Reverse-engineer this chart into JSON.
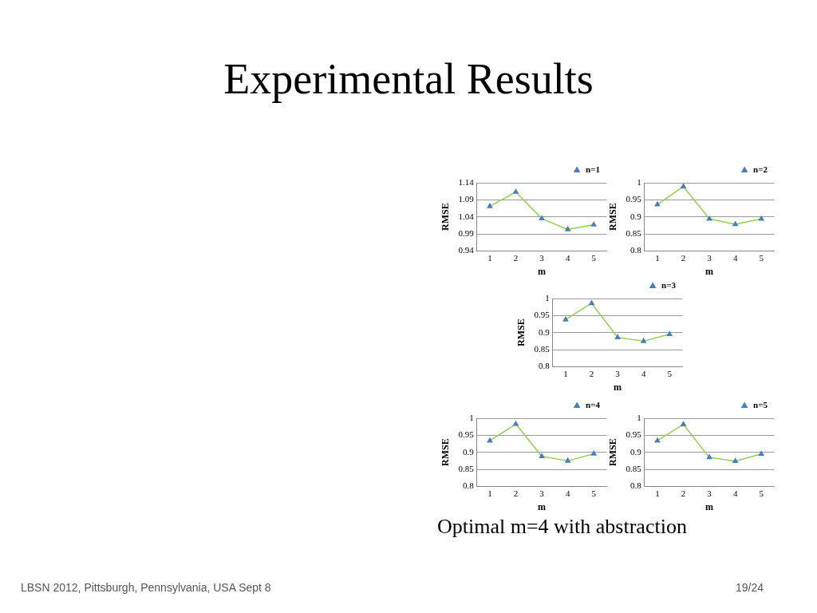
{
  "chart_data": [
    {
      "type": "line",
      "title": "Experimental Results",
      "xlabel": "m",
      "ylabel": "RMSE",
      "categories": [
        "1",
        "2",
        "3",
        "4",
        "5"
      ],
      "series": [
        {
          "name": "n=1",
          "color": "#92d050",
          "values": [
            1.071,
            1.113,
            1.035,
            1.003,
            1.017
          ]
        }
      ],
      "ylim": [
        0.94,
        1.14
      ],
      "yticks": [
        0.94,
        0.99,
        1.04,
        1.09,
        1.14
      ],
      "grid": "y",
      "legend": "top right",
      "marker": "triangle",
      "annotations": [
        "Optimal m=4 with abstraction",
        "LBSN 2012, Pittsburgh, Pennsylvania, USA  Sept 8",
        "19/24"
      ]
    },
    {
      "type": "line",
      "xlabel": "m",
      "ylabel": "RMSE",
      "categories": [
        "1",
        "2",
        "3",
        "4",
        "5"
      ],
      "series": [
        {
          "name": "n=2",
          "color": "#92d050",
          "values": [
            0.936,
            0.989,
            0.894,
            0.878,
            0.894
          ]
        }
      ],
      "ylim": [
        0.8,
        1
      ],
      "yticks": [
        0.8,
        0.85,
        0.9,
        0.95,
        1
      ],
      "grid": "y",
      "legend": "top right",
      "marker": "triangle"
    },
    {
      "type": "line",
      "xlabel": "m",
      "ylabel": "RMSE",
      "categories": [
        "1",
        "2",
        "3",
        "4",
        "5"
      ],
      "series": [
        {
          "name": "n=3",
          "color": "#92d050",
          "values": [
            0.938,
            0.986,
            0.886,
            0.875,
            0.895
          ]
        }
      ],
      "ylim": [
        0.8,
        1
      ],
      "yticks": [
        0.8,
        0.85,
        0.9,
        0.95,
        1
      ],
      "grid": "y",
      "legend": "top right",
      "marker": "triangle"
    },
    {
      "type": "line",
      "xlabel": "m",
      "ylabel": "RMSE",
      "categories": [
        "1",
        "2",
        "3",
        "4",
        "5"
      ],
      "series": [
        {
          "name": "n=4",
          "color": "#92d050",
          "values": [
            0.934,
            0.983,
            0.888,
            0.875,
            0.896
          ]
        }
      ],
      "ylim": [
        0.8,
        1
      ],
      "yticks": [
        0.8,
        0.85,
        0.9,
        0.95,
        1
      ],
      "grid": "y",
      "legend": "top right",
      "marker": "triangle"
    },
    {
      "type": "line",
      "xlabel": "m",
      "ylabel": "RMSE",
      "categories": [
        "1",
        "2",
        "3",
        "4",
        "5"
      ],
      "series": [
        {
          "name": "n=5",
          "color": "#92d050",
          "values": [
            0.934,
            0.982,
            0.885,
            0.874,
            0.895
          ]
        }
      ],
      "ylim": [
        0.8,
        1
      ],
      "yticks": [
        0.8,
        0.85,
        0.9,
        0.95,
        1
      ],
      "grid": "y",
      "legend": "top right",
      "marker": "triangle"
    }
  ]
}
